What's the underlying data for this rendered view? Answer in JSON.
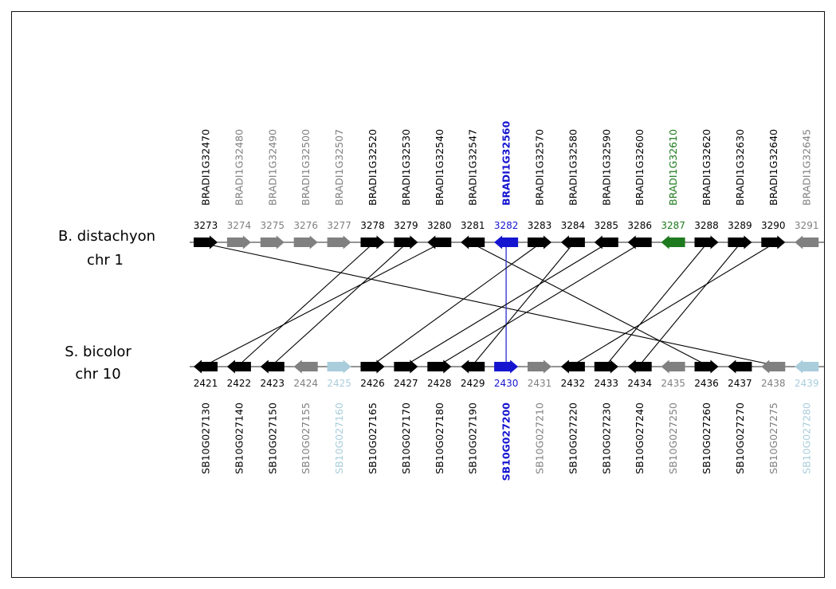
{
  "colors": {
    "black": "#000000",
    "gray": "#808080",
    "green": "#1e7a1e",
    "blue": "#1515d0",
    "lightblue": "#a9cddb",
    "line": "#000000",
    "highlight_line": "#3a3ad0"
  },
  "top": {
    "species_line1": "B. distachyon",
    "species_line2": "chr 1",
    "genes": [
      {
        "name": "BRADI1G32470",
        "num": "3273",
        "dir": "right",
        "color": "black"
      },
      {
        "name": "BRADI1G32480",
        "num": "3274",
        "dir": "right",
        "color": "gray"
      },
      {
        "name": "BRADI1G32490",
        "num": "3275",
        "dir": "right",
        "color": "gray"
      },
      {
        "name": "BRADI1G32500",
        "num": "3276",
        "dir": "right",
        "color": "gray"
      },
      {
        "name": "BRADI1G32507",
        "num": "3277",
        "dir": "right",
        "color": "gray"
      },
      {
        "name": "BRADI1G32520",
        "num": "3278",
        "dir": "right",
        "color": "black"
      },
      {
        "name": "BRADI1G32530",
        "num": "3279",
        "dir": "right",
        "color": "black"
      },
      {
        "name": "BRADI1G32540",
        "num": "3280",
        "dir": "left",
        "color": "black"
      },
      {
        "name": "BRADI1G32547",
        "num": "3281",
        "dir": "left",
        "color": "black"
      },
      {
        "name": "BRADI1G32560",
        "num": "3282",
        "dir": "left",
        "color": "blue",
        "bold": true
      },
      {
        "name": "BRADI1G32570",
        "num": "3283",
        "dir": "right",
        "color": "black"
      },
      {
        "name": "BRADI1G32580",
        "num": "3284",
        "dir": "left",
        "color": "black"
      },
      {
        "name": "BRADI1G32590",
        "num": "3285",
        "dir": "left",
        "color": "black"
      },
      {
        "name": "BRADI1G32600",
        "num": "3286",
        "dir": "left",
        "color": "black"
      },
      {
        "name": "BRADI1G32610",
        "num": "3287",
        "dir": "left",
        "color": "green"
      },
      {
        "name": "BRADI1G32620",
        "num": "3288",
        "dir": "right",
        "color": "black"
      },
      {
        "name": "BRADI1G32630",
        "num": "3289",
        "dir": "right",
        "color": "black"
      },
      {
        "name": "BRADI1G32640",
        "num": "3290",
        "dir": "right",
        "color": "black"
      },
      {
        "name": "BRADI1G32645",
        "num": "3291",
        "dir": "left",
        "color": "gray"
      }
    ]
  },
  "bottom": {
    "species_line1": "S. bicolor",
    "species_line2": "chr 10",
    "genes": [
      {
        "name": "SB10G027130",
        "num": "2421",
        "dir": "left",
        "color": "black"
      },
      {
        "name": "SB10G027140",
        "num": "2422",
        "dir": "left",
        "color": "black"
      },
      {
        "name": "SB10G027150",
        "num": "2423",
        "dir": "left",
        "color": "black"
      },
      {
        "name": "SB10G027155",
        "num": "2424",
        "dir": "left",
        "color": "gray"
      },
      {
        "name": "SB10G027160",
        "num": "2425",
        "dir": "right",
        "color": "lightblue"
      },
      {
        "name": "SB10G027165",
        "num": "2426",
        "dir": "right",
        "color": "black"
      },
      {
        "name": "SB10G027170",
        "num": "2427",
        "dir": "right",
        "color": "black"
      },
      {
        "name": "SB10G027180",
        "num": "2428",
        "dir": "right",
        "color": "black"
      },
      {
        "name": "SB10G027190",
        "num": "2429",
        "dir": "left",
        "color": "black"
      },
      {
        "name": "SB10G027200",
        "num": "2430",
        "dir": "right",
        "color": "blue",
        "bold": true
      },
      {
        "name": "SB10G027210",
        "num": "2431",
        "dir": "right",
        "color": "gray"
      },
      {
        "name": "SB10G027220",
        "num": "2432",
        "dir": "left",
        "color": "black"
      },
      {
        "name": "SB10G027230",
        "num": "2433",
        "dir": "right",
        "color": "black"
      },
      {
        "name": "SB10G027240",
        "num": "2434",
        "dir": "left",
        "color": "black"
      },
      {
        "name": "SB10G027250",
        "num": "2435",
        "dir": "left",
        "color": "gray"
      },
      {
        "name": "SB10G027260",
        "num": "2436",
        "dir": "right",
        "color": "black"
      },
      {
        "name": "SB10G027270",
        "num": "2437",
        "dir": "left",
        "color": "black"
      },
      {
        "name": "SB10G027275",
        "num": "2438",
        "dir": "left",
        "color": "gray"
      },
      {
        "name": "SB10G027280",
        "num": "2439",
        "dir": "left",
        "color": "lightblue"
      }
    ]
  },
  "links": [
    [
      0,
      17
    ],
    [
      5,
      1
    ],
    [
      6,
      2
    ],
    [
      7,
      0
    ],
    [
      8,
      15
    ],
    [
      9,
      9
    ],
    [
      10,
      5
    ],
    [
      11,
      8
    ],
    [
      12,
      6
    ],
    [
      13,
      7
    ],
    [
      15,
      12
    ],
    [
      16,
      13
    ],
    [
      17,
      11
    ]
  ],
  "highlight_link": [
    9,
    9
  ]
}
